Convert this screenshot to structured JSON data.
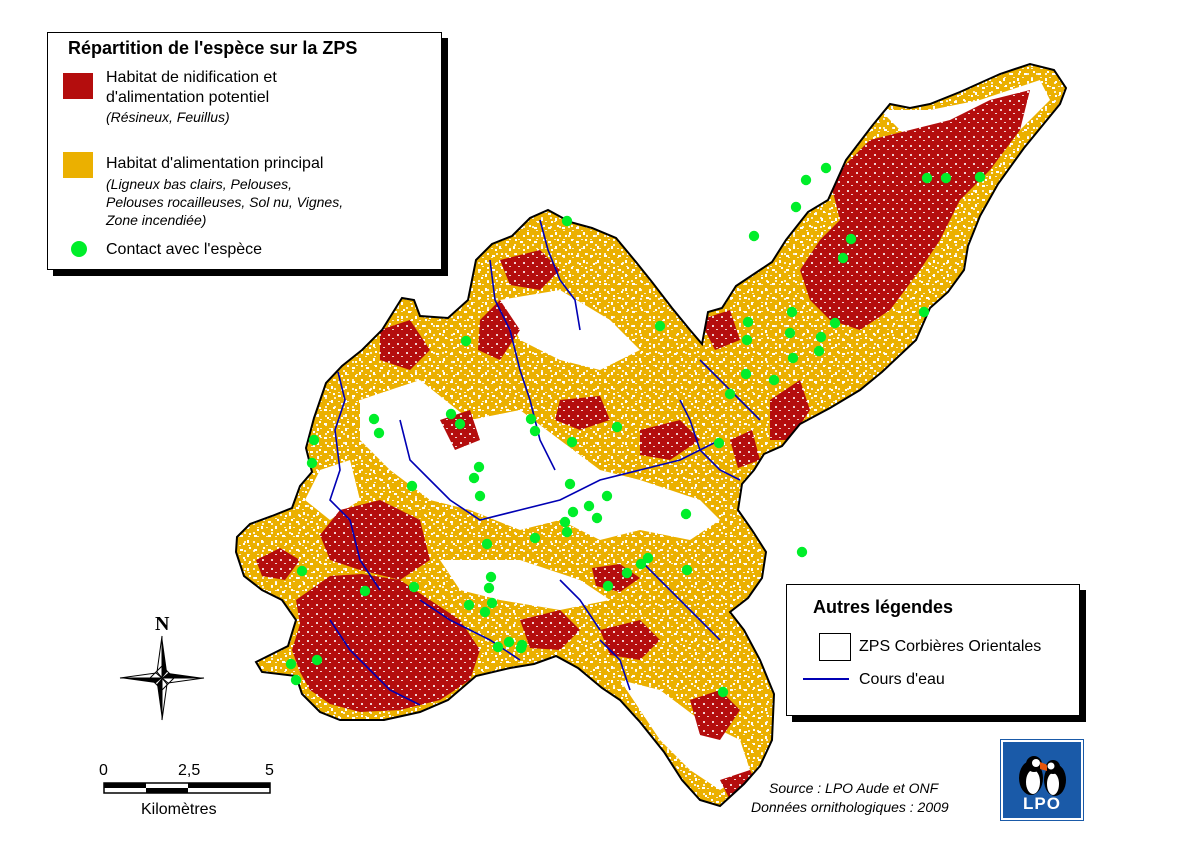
{
  "legend_main": {
    "title": "Répartition de l'espèce sur la ZPS",
    "items": [
      {
        "label_line1": "Habitat de nidification et",
        "label_line2": "d'alimentation potentiel",
        "note": "(Résineux, Feuillus)",
        "color": "#b40d0d"
      },
      {
        "label_line1": "Habitat d'alimentation principal",
        "note_line1": "(Ligneux bas clairs, Pelouses,",
        "note_line2": "Pelouses rocailleuses, Sol nu, Vignes,",
        "note_line3": "Zone incendiée)",
        "color": "#ebb000"
      },
      {
        "label_line1": "Contact avec l'espèce",
        "color": "#00ee2a"
      }
    ]
  },
  "legend_other": {
    "title": "Autres légendes",
    "items": [
      {
        "label": "ZPS Corbières Orientales"
      },
      {
        "label": "Cours d'eau",
        "color": "#0000b4"
      }
    ]
  },
  "scale": {
    "ticks": [
      "0",
      "2,5",
      "5"
    ],
    "unit": "Kilomètres"
  },
  "north_label": "N",
  "source_line1": "Source : LPO Aude et ONF",
  "source_line2": "Données ornithologiques : 2009",
  "logo_text": "LPO",
  "colors": {
    "nesting": "#b40d0d",
    "feeding": "#ebb000",
    "contact": "#00ee2a",
    "river": "#0000b4"
  }
}
